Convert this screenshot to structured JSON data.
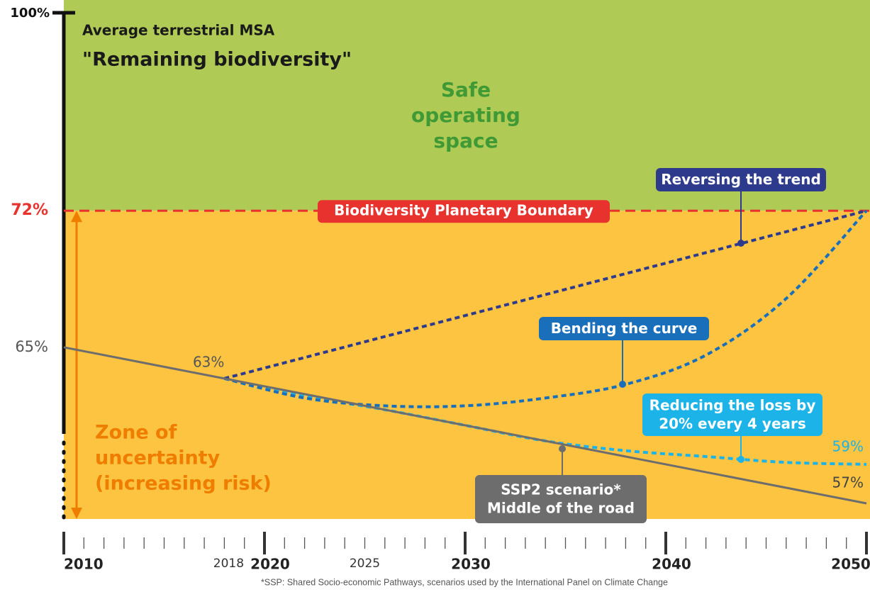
{
  "chart_data": {
    "type": "line",
    "axis_title": "Average terrestrial MSA",
    "subtitle": "\"Remaining biodiversity\"",
    "axis_top_label": "100%",
    "safe_zone_label": [
      "Safe",
      "operating",
      "space"
    ],
    "uncertainty_zone_label": [
      "Zone of",
      "uncertainty",
      "(increasing risk)"
    ],
    "boundary": {
      "value": 72,
      "label": "Biodiversity Planetary Boundary",
      "color": "#e8322d"
    },
    "xlim": [
      2010,
      2050
    ],
    "xticks": [
      2010,
      2020,
      2030,
      2040,
      2050
    ],
    "xticks_minor_labeled": [
      2018,
      2025
    ],
    "xticks_minor": [
      2011,
      2012,
      2013,
      2014,
      2015,
      2016,
      2017,
      2018,
      2019,
      2021,
      2022,
      2023,
      2024,
      2025,
      2026,
      2027,
      2028,
      2029,
      2031,
      2032,
      2033,
      2034,
      2035,
      2036,
      2037,
      2038,
      2039,
      2041,
      2042,
      2043,
      2044,
      2045,
      2046,
      2047,
      2048,
      2049
    ],
    "ylim": [
      56.2,
      82.8
    ],
    "yticks": [
      {
        "value": 65,
        "label": "65%"
      },
      {
        "value": 72,
        "label": "72%"
      }
    ],
    "series": [
      {
        "name": [
          "SSP2 scenario*",
          "Middle of the road"
        ],
        "color": "#6d6d6d",
        "dashed": false,
        "x": [
          2010,
          2018,
          2050
        ],
        "values": [
          65,
          63.4,
          57
        ],
        "value_labels": [
          null,
          "63%",
          "57%"
        ]
      },
      {
        "name": [
          "Reversing the trend"
        ],
        "color": "#2e3a8c",
        "dashed": true,
        "x": [
          2018,
          2050
        ],
        "values": [
          63.4,
          72
        ]
      },
      {
        "name": [
          "Bending the curve"
        ],
        "color": "#1a6fba",
        "dashed": true,
        "x": [
          2018,
          2022,
          2026,
          2030,
          2034,
          2038,
          2042,
          2046,
          2050
        ],
        "values": [
          63.4,
          62.4,
          62.0,
          62.0,
          62.4,
          63.1,
          64.6,
          67.5,
          72
        ]
      },
      {
        "name": [
          "Reducing the loss by",
          "20% every 4 years"
        ],
        "color": "#1cb4e8",
        "dashed": true,
        "x": [
          2018,
          2022,
          2026,
          2030,
          2034,
          2038,
          2042,
          2046,
          2050
        ],
        "values": [
          63.4,
          62.5,
          61.8,
          61.0,
          60.2,
          59.7,
          59.4,
          59.1,
          59.0
        ],
        "value_labels": [
          null,
          null,
          null,
          null,
          null,
          null,
          null,
          null,
          "59%"
        ]
      }
    ],
    "footnote": "*SSP: Shared Socio-economic Pathways, scenarios used by the International Panel on Climate Change"
  }
}
